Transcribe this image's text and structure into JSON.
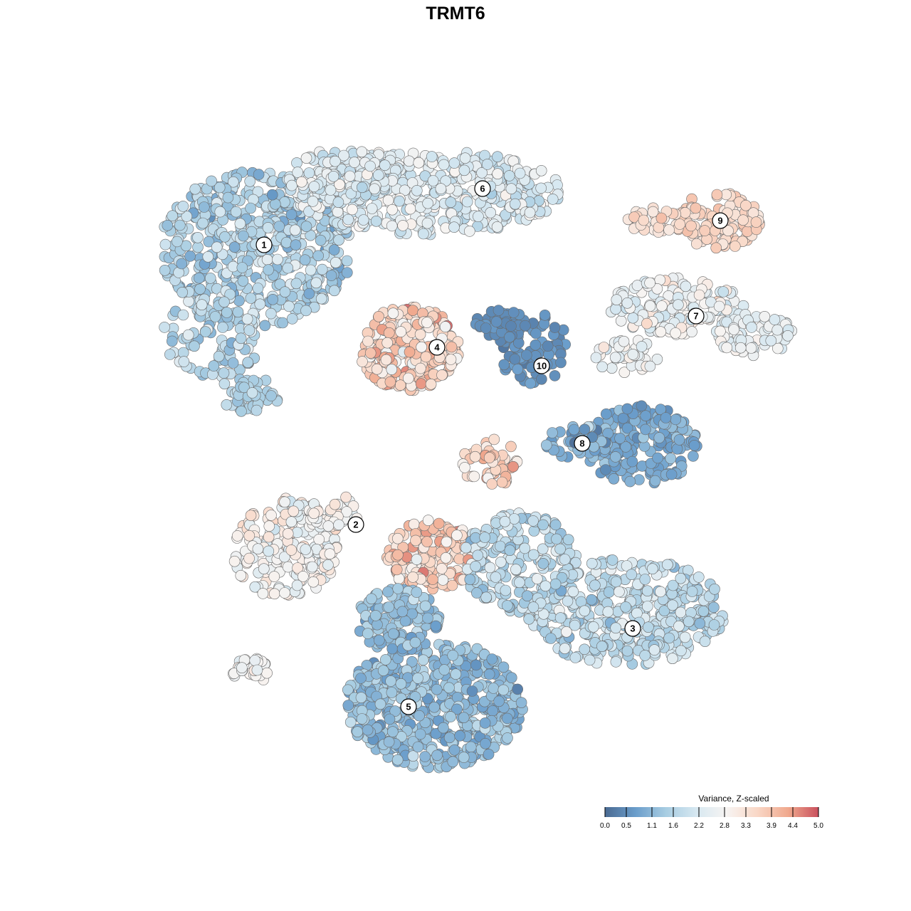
{
  "chart_data": {
    "type": "scatter",
    "title": "TRMT6",
    "xlabel": "",
    "ylabel": "",
    "grid": false,
    "axes_visible": false,
    "colorbar": {
      "title": "Variance, Z-scaled",
      "ticks": [
        0.0,
        0.5,
        1.1,
        1.6,
        2.2,
        2.8,
        3.3,
        3.9,
        4.4,
        5.0
      ],
      "tick_labels": [
        "0.0",
        "0.5",
        "1.1",
        "1.6",
        "2.2",
        "2.8",
        "3.3",
        "3.9",
        "4.4",
        "5.0"
      ],
      "range": [
        0.0,
        5.0
      ],
      "colors": [
        "#4a6a92",
        "#6a9dcb",
        "#a8cde2",
        "#d7e8f1",
        "#f7f4f2",
        "#f9d7c6",
        "#f0a98e",
        "#c9505d"
      ],
      "placement": "bottom-right"
    },
    "clusters": [
      {
        "label": "1",
        "value": 1.6
      },
      {
        "label": "2",
        "value": 2.8
      },
      {
        "label": "3",
        "value": 1.8
      },
      {
        "label": "4",
        "value": 3.6
      },
      {
        "label": "5",
        "value": 1.2
      },
      {
        "label": "6",
        "value": 2.3
      },
      {
        "label": "7",
        "value": 2.6
      },
      {
        "label": "8",
        "value": 0.9
      },
      {
        "label": "9",
        "value": 3.5
      },
      {
        "label": "10",
        "value": 0.5
      }
    ]
  }
}
